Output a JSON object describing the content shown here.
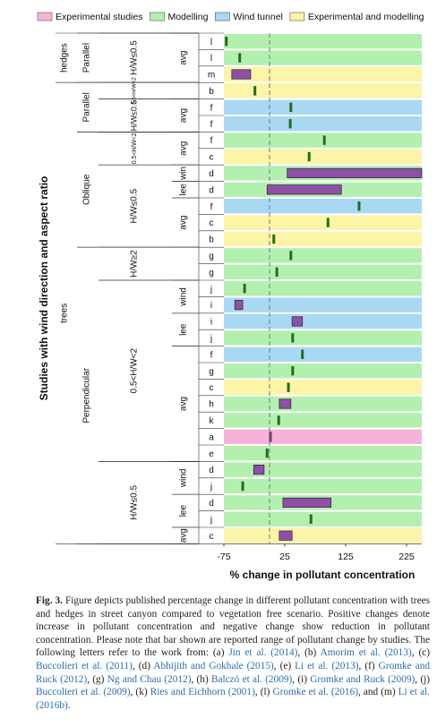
{
  "chart_data": {
    "type": "range-bar",
    "y_title": "Studies with wind direction and aspect ratio",
    "x_title": "% change in pollutant concentration",
    "series": [
      {
        "name": "Experimental studies",
        "color": "#f6b3d9"
      },
      {
        "name": "Modelling",
        "color": "#b3f0b0"
      },
      {
        "name": "Wind tunnel",
        "color": "#a9d8f3"
      },
      {
        "name": "Experimental and modelling",
        "color": "#fcf4a6"
      }
    ],
    "categories": [
      "l",
      "l",
      "m",
      "b",
      "f",
      "f",
      "f",
      "c",
      "d",
      "d",
      "f",
      "c",
      "b",
      "g",
      "g",
      "j",
      "i",
      "i",
      "j",
      "f",
      "g",
      "c",
      "h",
      "k",
      "a",
      "e",
      "d",
      "j",
      "d",
      "j",
      "c"
    ],
    "row_type": [
      1,
      1,
      3,
      3,
      2,
      2,
      1,
      3,
      1,
      1,
      2,
      3,
      3,
      1,
      1,
      1,
      2,
      2,
      1,
      2,
      1,
      3,
      1,
      1,
      0,
      1,
      1,
      1,
      1,
      1,
      3
    ],
    "values": [
      -71,
      -49,
      [
        -62,
        -31
      ],
      -24,
      35,
      34,
      90,
      65,
      [
        29,
        250
      ],
      [
        -4,
        118
      ],
      147,
      96,
      7,
      35,
      12,
      -41,
      [
        -57,
        -44
      ],
      [
        37,
        54
      ],
      38,
      54,
      38,
      31,
      [
        16,
        35
      ],
      15,
      [
        0,
        3
      ],
      -4,
      [
        -26,
        -9
      ],
      -44,
      [
        22,
        101
      ],
      68,
      [
        16,
        37
      ]
    ],
    "point_color": "#1f6e1f",
    "range_color": "#8f4fa8",
    "reference_line": 0,
    "xlim": [
      -75,
      250
    ],
    "xticks": [
      -75,
      25,
      125,
      225
    ],
    "groups": [
      [
        {
          "label": "hedges",
          "from": 0,
          "to": 2
        },
        {
          "label": "trees",
          "from": 3,
          "to": 30
        }
      ],
      [
        {
          "label": "Parallel",
          "from": 0,
          "to": 2
        },
        {
          "label": "Parallel",
          "from": 3,
          "to": 5
        },
        {
          "label": "Oblique",
          "from": 6,
          "to": 12
        },
        {
          "label": "Perpendicular",
          "from": 13,
          "to": 30
        }
      ],
      [
        {
          "label": "H/W≤0.5",
          "from": 0,
          "to": 2
        },
        {
          "label": "0.5<H/W<2",
          "from": 3,
          "to": 3
        },
        {
          "label": "H/W≤0.5",
          "from": 4,
          "to": 5
        },
        {
          "label": "0.5<H/W<2",
          "from": 6,
          "to": 7
        },
        {
          "label": "H/W≤0.5",
          "from": 8,
          "to": 12
        },
        {
          "label": "H/W≥2",
          "from": 13,
          "to": 14
        },
        {
          "label": "0.5<H/W<2",
          "from": 15,
          "to": 25
        },
        {
          "label": "H/W≤0.5",
          "from": 26,
          "to": 30
        }
      ],
      [
        {
          "label": "avg",
          "from": 0,
          "to": 2
        },
        {
          "label": "avg",
          "from": 4,
          "to": 5
        },
        {
          "label": "avg",
          "from": 6,
          "to": 7
        },
        {
          "label": "win",
          "from": 8,
          "to": 8
        },
        {
          "label": "lee",
          "from": 9,
          "to": 9
        },
        {
          "label": "avg",
          "from": 10,
          "to": 12
        },
        {
          "label": "wind",
          "from": 15,
          "to": 16
        },
        {
          "label": "lee",
          "from": 17,
          "to": 18
        },
        {
          "label": "avg",
          "from": 19,
          "to": 25
        },
        {
          "label": "wind",
          "from": 26,
          "to": 27
        },
        {
          "label": "lee",
          "from": 28,
          "to": 29
        },
        {
          "label": "avg",
          "from": 30,
          "to": 30
        }
      ]
    ]
  },
  "caption": {
    "label": "Fig. 3.",
    "segments": [
      {
        "text": " Figure depicts published percentage change in different pollutant concentration with trees and hedges in street canyon compared to vegetation free scenario. Positive changes denote increase in pollutant concentration and negative change show reduction in pollutant concentration. Please note that bar shown are reported range of pollutant change by studies. The following letters refer to the work from: (a) ",
        "cite": false
      },
      {
        "text": "Jin et al. (2014)",
        "cite": true
      },
      {
        "text": ", (b) ",
        "cite": false
      },
      {
        "text": "Amorim et al. (2013)",
        "cite": true
      },
      {
        "text": ", (c) ",
        "cite": false
      },
      {
        "text": "Buccolieri et al. (2011)",
        "cite": true
      },
      {
        "text": ", (d) ",
        "cite": false
      },
      {
        "text": "Abhijith and Gokhale (2015)",
        "cite": true
      },
      {
        "text": ", (e) ",
        "cite": false
      },
      {
        "text": "Li et al. (2013)",
        "cite": true
      },
      {
        "text": ", (f) ",
        "cite": false
      },
      {
        "text": "Gromke and Ruck (2012)",
        "cite": true
      },
      {
        "text": ", (g) ",
        "cite": false
      },
      {
        "text": "Ng and Chau (2012)",
        "cite": true
      },
      {
        "text": ", (h) ",
        "cite": false
      },
      {
        "text": "Balczó et al. (2009)",
        "cite": true
      },
      {
        "text": ", (i) ",
        "cite": false
      },
      {
        "text": "Gromke and Ruck (2009)",
        "cite": true
      },
      {
        "text": ", (j) ",
        "cite": false
      },
      {
        "text": "Buccolieri et al. (2009)",
        "cite": true
      },
      {
        "text": ", (k) ",
        "cite": false
      },
      {
        "text": "Ries and Eichhorn (2001)",
        "cite": true
      },
      {
        "text": ", (l) ",
        "cite": false
      },
      {
        "text": "Gromke et al. (2016)",
        "cite": true
      },
      {
        "text": ", and (m) ",
        "cite": false
      },
      {
        "text": "Li et al. (2016b)",
        "cite": true
      },
      {
        "text": ".",
        "cite": false
      }
    ]
  }
}
